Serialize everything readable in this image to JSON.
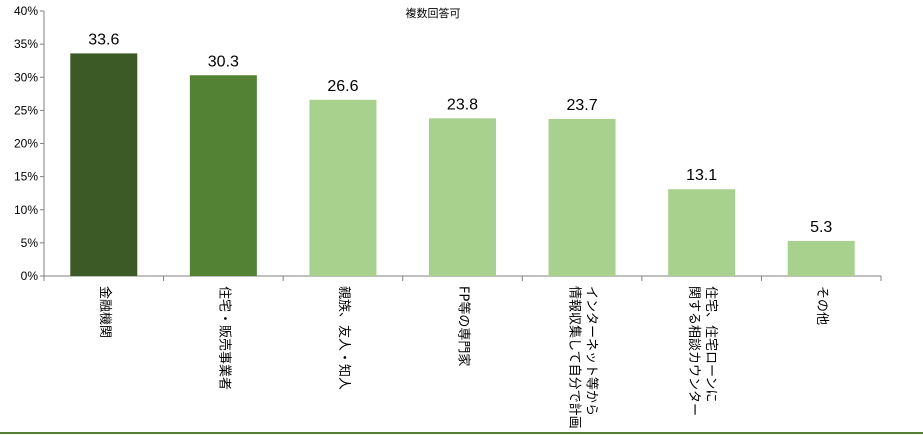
{
  "chart_data": {
    "type": "bar",
    "title": "",
    "annotation": "複数回答可",
    "categories": [
      [
        "金融機関"
      ],
      [
        "住宅・販売事業者"
      ],
      [
        "親族、友人・知人"
      ],
      [
        "FP等の専門家"
      ],
      [
        "インターネット等から",
        "情報収集して自分で計画"
      ],
      [
        "住宅、住宅ローンに",
        "関する相談カウンター"
      ],
      [
        "その他"
      ]
    ],
    "values": [
      33.6,
      30.3,
      26.6,
      23.8,
      23.7,
      13.1,
      5.3
    ],
    "value_labels": [
      "33.6",
      "30.3",
      "26.6",
      "23.8",
      "23.7",
      "13.1",
      "5.3"
    ],
    "bar_colors": [
      "#3c5a26",
      "#548235",
      "#a9d18e",
      "#a9d18e",
      "#a9d18e",
      "#a9d18e",
      "#a9d18e"
    ],
    "ylim": [
      0,
      40
    ],
    "yticks": [
      0,
      5,
      10,
      15,
      20,
      25,
      30,
      35,
      40
    ],
    "ytick_labels": [
      "0%",
      "5%",
      "10%",
      "15%",
      "20%",
      "25%",
      "30%",
      "35%",
      "40%"
    ],
    "xlabel": "",
    "ylabel": "",
    "grid": false,
    "legend": "none",
    "bottom_rule_color": "#548235"
  }
}
